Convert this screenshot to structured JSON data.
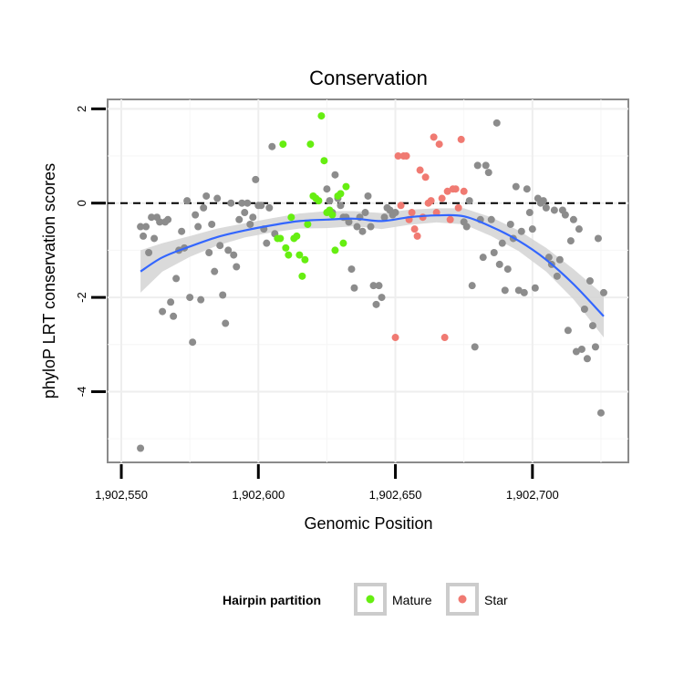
{
  "chart_data": {
    "type": "scatter",
    "title": "Conservation",
    "xlabel": "Genomic Position",
    "ylabel": "phyloP LRT conservation scores",
    "xlim": [
      1902545,
      1902735
    ],
    "ylim": [
      -5.5,
      2.2
    ],
    "x_ticks": [
      1902550,
      1902600,
      1902650,
      1902700
    ],
    "x_tick_labels": [
      "1,902,550",
      "1,902,600",
      "1,902,650",
      "1,902,700"
    ],
    "y_ticks": [
      2,
      0,
      -2,
      -4
    ],
    "y_tick_labels": [
      "2",
      "0",
      "-2",
      "-4"
    ],
    "grid": true,
    "reference_line": {
      "y": 0,
      "style": "dashed"
    },
    "legend": {
      "title": "Hairpin partition",
      "placement": "bottom",
      "entries": [
        {
          "name": "Mature",
          "color": "#66ee11"
        },
        {
          "name": "Star",
          "color": "#f07a72"
        }
      ]
    },
    "colors": {
      "other": "#8c8c8c",
      "Mature": "#66ee11",
      "Star": "#f07a72",
      "smooth": "#3366ff",
      "band": "#d4d4d4"
    },
    "series": [
      {
        "name": "",
        "group": "other",
        "points": [
          [
            1902557,
            -5.2
          ],
          [
            1902557,
            -0.5
          ],
          [
            1902558,
            -0.7
          ],
          [
            1902559,
            -0.5
          ],
          [
            1902560,
            -1.05
          ],
          [
            1902561,
            -0.3
          ],
          [
            1902562,
            -0.75
          ],
          [
            1902563,
            -0.3
          ],
          [
            1902564,
            -0.4
          ],
          [
            1902565,
            -2.3
          ],
          [
            1902566,
            -0.4
          ],
          [
            1902567,
            -0.35
          ],
          [
            1902568,
            -2.1
          ],
          [
            1902569,
            -2.4
          ],
          [
            1902570,
            -1.6
          ],
          [
            1902571,
            -1.0
          ],
          [
            1902572,
            -0.6
          ],
          [
            1902573,
            -0.95
          ],
          [
            1902574,
            0.05
          ],
          [
            1902575,
            -2.0
          ],
          [
            1902576,
            -2.95
          ],
          [
            1902577,
            -0.25
          ],
          [
            1902578,
            -0.5
          ],
          [
            1902579,
            -2.05
          ],
          [
            1902580,
            -0.1
          ],
          [
            1902581,
            0.15
          ],
          [
            1902582,
            -1.05
          ],
          [
            1902583,
            -0.45
          ],
          [
            1902584,
            -1.45
          ],
          [
            1902585,
            0.1
          ],
          [
            1902586,
            -0.9
          ],
          [
            1902587,
            -1.95
          ],
          [
            1902588,
            -2.55
          ],
          [
            1902589,
            -1.0
          ],
          [
            1902590,
            0.0
          ],
          [
            1902591,
            -1.1
          ],
          [
            1902592,
            -1.35
          ],
          [
            1902593,
            -0.35
          ],
          [
            1902594,
            0.0
          ],
          [
            1902595,
            -0.2
          ],
          [
            1902596,
            0.0
          ],
          [
            1902597,
            -0.45
          ],
          [
            1902598,
            -0.3
          ],
          [
            1902599,
            0.5
          ],
          [
            1902600,
            -0.05
          ],
          [
            1902601,
            -0.05
          ],
          [
            1902602,
            -0.55
          ],
          [
            1902603,
            -0.85
          ],
          [
            1902604,
            -0.1
          ],
          [
            1902605,
            1.2
          ],
          [
            1902606,
            -0.65
          ],
          [
            1902625,
            0.3
          ],
          [
            1902626,
            0.05
          ],
          [
            1902627,
            -0.2
          ],
          [
            1902628,
            0.6
          ],
          [
            1902629,
            0.1
          ],
          [
            1902630,
            -0.05
          ],
          [
            1902631,
            -0.3
          ],
          [
            1902632,
            -0.3
          ],
          [
            1902633,
            -0.4
          ],
          [
            1902634,
            -1.4
          ],
          [
            1902635,
            -1.8
          ],
          [
            1902636,
            -0.5
          ],
          [
            1902637,
            -0.3
          ],
          [
            1902638,
            -0.6
          ],
          [
            1902639,
            -0.2
          ],
          [
            1902640,
            0.15
          ],
          [
            1902641,
            -0.5
          ],
          [
            1902642,
            -1.75
          ],
          [
            1902643,
            -2.15
          ],
          [
            1902644,
            -1.75
          ],
          [
            1902645,
            -2.0
          ],
          [
            1902646,
            -0.3
          ],
          [
            1902647,
            -0.1
          ],
          [
            1902648,
            -0.15
          ],
          [
            1902649,
            -0.25
          ],
          [
            1902650,
            -0.2
          ],
          [
            1902675,
            -0.4
          ],
          [
            1902676,
            -0.5
          ],
          [
            1902677,
            0.05
          ],
          [
            1902678,
            -1.75
          ],
          [
            1902679,
            -3.05
          ],
          [
            1902680,
            0.8
          ],
          [
            1902681,
            -0.35
          ],
          [
            1902682,
            -1.15
          ],
          [
            1902683,
            0.8
          ],
          [
            1902684,
            0.65
          ],
          [
            1902685,
            -0.35
          ],
          [
            1902686,
            -1.05
          ],
          [
            1902687,
            1.7
          ],
          [
            1902688,
            -1.3
          ],
          [
            1902689,
            -0.85
          ],
          [
            1902690,
            -1.85
          ],
          [
            1902691,
            -1.4
          ],
          [
            1902692,
            -0.45
          ],
          [
            1902693,
            -0.75
          ],
          [
            1902694,
            0.35
          ],
          [
            1902695,
            -1.85
          ],
          [
            1902696,
            -0.6
          ],
          [
            1902697,
            -1.9
          ],
          [
            1902698,
            0.3
          ],
          [
            1902699,
            -0.2
          ],
          [
            1902700,
            -0.55
          ],
          [
            1902701,
            -1.8
          ],
          [
            1902702,
            0.1
          ],
          [
            1902703,
            0.0
          ],
          [
            1902704,
            0.05
          ],
          [
            1902705,
            -0.1
          ],
          [
            1902706,
            -1.15
          ],
          [
            1902707,
            -1.3
          ],
          [
            1902708,
            -0.15
          ],
          [
            1902709,
            -1.55
          ],
          [
            1902710,
            -1.2
          ],
          [
            1902711,
            -0.15
          ],
          [
            1902712,
            -0.25
          ],
          [
            1902713,
            -2.7
          ],
          [
            1902714,
            -0.8
          ],
          [
            1902715,
            -0.35
          ],
          [
            1902716,
            -3.15
          ],
          [
            1902717,
            -0.55
          ],
          [
            1902718,
            -3.1
          ],
          [
            1902719,
            -2.25
          ],
          [
            1902720,
            -3.3
          ],
          [
            1902721,
            -1.65
          ],
          [
            1902722,
            -2.6
          ],
          [
            1902723,
            -3.05
          ],
          [
            1902724,
            -0.75
          ],
          [
            1902725,
            -4.45
          ],
          [
            1902726,
            -1.9
          ]
        ]
      },
      {
        "name": "Mature",
        "group": "Mature",
        "points": [
          [
            1902607,
            -0.75
          ],
          [
            1902608,
            -0.75
          ],
          [
            1902609,
            1.25
          ],
          [
            1902610,
            -0.95
          ],
          [
            1902611,
            -1.1
          ],
          [
            1902612,
            -0.3
          ],
          [
            1902613,
            -0.75
          ],
          [
            1902614,
            -0.7
          ],
          [
            1902615,
            -1.1
          ],
          [
            1902616,
            -1.55
          ],
          [
            1902617,
            -1.2
          ],
          [
            1902618,
            -0.45
          ],
          [
            1902619,
            1.25
          ],
          [
            1902620,
            0.15
          ],
          [
            1902621,
            0.1
          ],
          [
            1902622,
            0.05
          ],
          [
            1902623,
            1.85
          ],
          [
            1902624,
            0.9
          ],
          [
            1902625,
            -0.2
          ],
          [
            1902626,
            -0.15
          ],
          [
            1902627,
            -0.25
          ],
          [
            1902628,
            -1.0
          ],
          [
            1902629,
            0.15
          ],
          [
            1902630,
            0.2
          ],
          [
            1902631,
            -0.85
          ],
          [
            1902632,
            0.35
          ]
        ]
      },
      {
        "name": "Star",
        "group": "Star",
        "points": [
          [
            1902650,
            -2.85
          ],
          [
            1902651,
            1.0
          ],
          [
            1902652,
            -0.05
          ],
          [
            1902653,
            1.0
          ],
          [
            1902654,
            1.0
          ],
          [
            1902655,
            -0.35
          ],
          [
            1902656,
            -0.2
          ],
          [
            1902657,
            -0.55
          ],
          [
            1902658,
            -0.7
          ],
          [
            1902659,
            0.7
          ],
          [
            1902660,
            -0.3
          ],
          [
            1902661,
            0.55
          ],
          [
            1902662,
            0.0
          ],
          [
            1902663,
            0.05
          ],
          [
            1902664,
            1.4
          ],
          [
            1902665,
            -0.2
          ],
          [
            1902666,
            1.25
          ],
          [
            1902667,
            0.1
          ],
          [
            1902668,
            -2.85
          ],
          [
            1902669,
            0.25
          ],
          [
            1902670,
            -0.35
          ],
          [
            1902671,
            0.3
          ],
          [
            1902672,
            0.3
          ],
          [
            1902673,
            -0.1
          ],
          [
            1902674,
            1.35
          ],
          [
            1902675,
            0.25
          ]
        ]
      }
    ],
    "smooth": {
      "x": [
        1902557,
        1902565,
        1902575,
        1902585,
        1902595,
        1902605,
        1902615,
        1902625,
        1902635,
        1902645,
        1902655,
        1902665,
        1902675,
        1902685,
        1902695,
        1902705,
        1902715,
        1902726
      ],
      "y": [
        -1.45,
        -1.15,
        -0.92,
        -0.72,
        -0.58,
        -0.47,
        -0.38,
        -0.35,
        -0.33,
        -0.38,
        -0.3,
        -0.26,
        -0.28,
        -0.5,
        -0.8,
        -1.2,
        -1.72,
        -2.4
      ],
      "half_width": [
        0.45,
        0.3,
        0.22,
        0.18,
        0.15,
        0.15,
        0.16,
        0.18,
        0.16,
        0.17,
        0.16,
        0.15,
        0.17,
        0.2,
        0.22,
        0.25,
        0.32,
        0.45
      ]
    }
  }
}
